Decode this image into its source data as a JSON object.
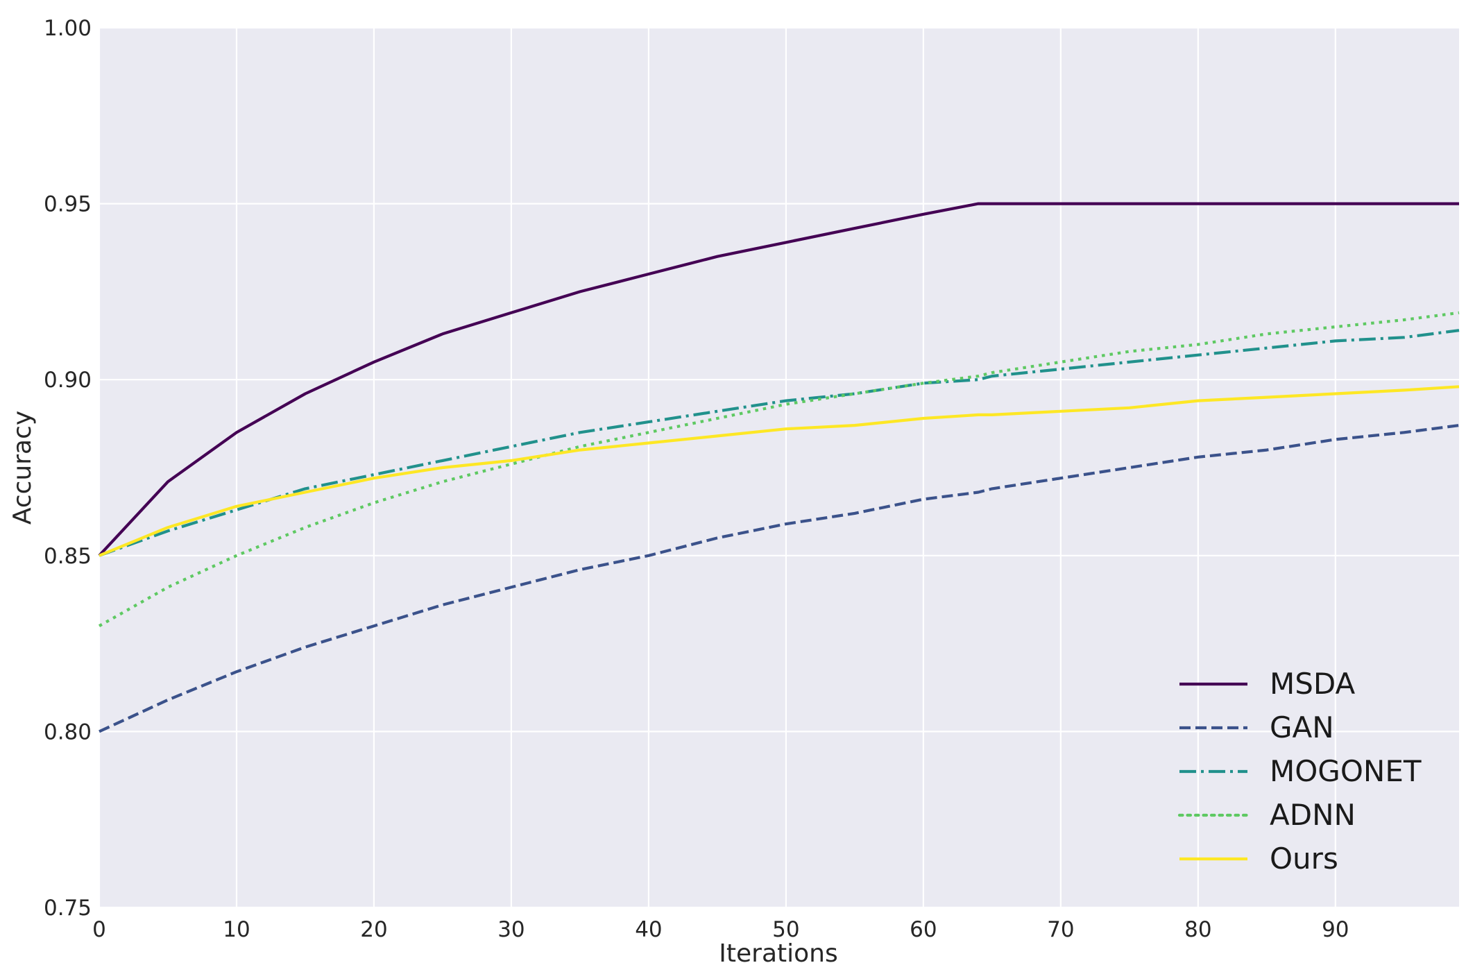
{
  "chart_data": {
    "type": "line",
    "title": "",
    "xlabel": "Iterations",
    "ylabel": "Accuracy",
    "xlim": [
      0,
      99
    ],
    "ylim": [
      0.75,
      1.0
    ],
    "xticks": [
      0,
      10,
      20,
      30,
      40,
      50,
      60,
      70,
      80,
      90
    ],
    "yticks": [
      "0.75",
      "0.80",
      "0.85",
      "0.90",
      "0.95",
      "1.00"
    ],
    "grid": true,
    "legend_position": "bottom-right",
    "x": [
      0,
      5,
      10,
      15,
      20,
      25,
      30,
      35,
      40,
      45,
      50,
      55,
      60,
      64,
      65,
      70,
      75,
      80,
      85,
      90,
      95,
      99
    ],
    "series": [
      {
        "name": "MSDA",
        "color": "#440154",
        "dash": "solid",
        "values": [
          0.85,
          0.871,
          0.885,
          0.896,
          0.905,
          0.913,
          0.919,
          0.925,
          0.93,
          0.935,
          0.939,
          0.943,
          0.947,
          0.95,
          0.95,
          0.95,
          0.95,
          0.95,
          0.95,
          0.95,
          0.95,
          0.95
        ]
      },
      {
        "name": "GAN",
        "color": "#3b528b",
        "dash": "dashed",
        "values": [
          0.8,
          0.809,
          0.817,
          0.824,
          0.83,
          0.836,
          0.841,
          0.846,
          0.85,
          0.855,
          0.859,
          0.862,
          0.866,
          0.868,
          0.869,
          0.872,
          0.875,
          0.878,
          0.88,
          0.883,
          0.885,
          0.887
        ]
      },
      {
        "name": "MOGONET",
        "color": "#21918c",
        "dash": "dashdot",
        "values": [
          0.85,
          0.857,
          0.863,
          0.869,
          0.873,
          0.877,
          0.881,
          0.885,
          0.888,
          0.891,
          0.894,
          0.896,
          0.899,
          0.9,
          0.901,
          0.903,
          0.905,
          0.907,
          0.909,
          0.911,
          0.912,
          0.914
        ]
      },
      {
        "name": "ADNN",
        "color": "#5ec962",
        "dash": "dotted",
        "values": [
          0.83,
          0.841,
          0.85,
          0.858,
          0.865,
          0.871,
          0.876,
          0.881,
          0.885,
          0.889,
          0.893,
          0.896,
          0.899,
          0.901,
          0.902,
          0.905,
          0.908,
          0.91,
          0.913,
          0.915,
          0.917,
          0.919
        ]
      },
      {
        "name": "Ours",
        "color": "#fde725",
        "dash": "solid",
        "values": [
          0.85,
          0.858,
          0.864,
          0.868,
          0.872,
          0.875,
          0.877,
          0.88,
          0.882,
          0.884,
          0.886,
          0.887,
          0.889,
          0.89,
          0.89,
          0.891,
          0.892,
          0.894,
          0.895,
          0.896,
          0.897,
          0.898
        ]
      }
    ]
  }
}
